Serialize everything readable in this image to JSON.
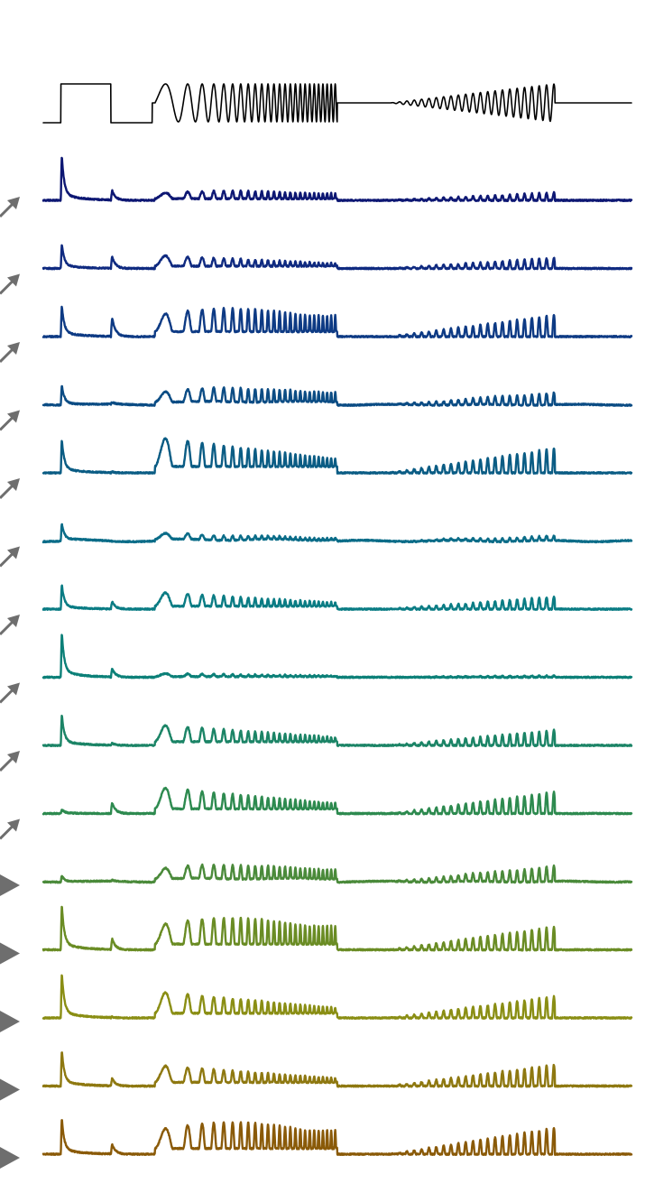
{
  "chart_data": {
    "type": "line",
    "title": "",
    "xlabel": "",
    "ylabel": "",
    "grid": false,
    "legend": "none",
    "stimulus": {
      "name": "",
      "color": "#000000",
      "segments": [
        {
          "kind": "step",
          "t_start": 0.03,
          "t_end": 0.115
        },
        {
          "kind": "chirp",
          "t_start": 0.19,
          "t_end": 0.5,
          "f_start": 1.0,
          "f_end": 15.0
        },
        {
          "kind": "amplitude_sweep",
          "t_start": 0.59,
          "t_end": 0.87,
          "f": 8.0
        }
      ]
    },
    "series": [
      {
        "color": "#0d1773",
        "transient": 1.0,
        "off_bump": 0.45,
        "chirp_amp": 0.25,
        "chirp_shape": "sustained",
        "sweep_amp": 0.25,
        "drift": 0.0
      },
      {
        "color": "#0f2a80",
        "transient": 0.55,
        "off_bump": 0.55,
        "chirp_amp": 0.35,
        "chirp_shape": "decay",
        "sweep_amp": 0.35,
        "drift": 0.0
      },
      {
        "color": "#0d3a84",
        "transient": 0.7,
        "off_bump": 0.85,
        "chirp_amp": 0.75,
        "chirp_shape": "sustained",
        "sweep_amp": 0.7,
        "drift": 0.0
      },
      {
        "color": "#0b4c84",
        "transient": 0.45,
        "off_bump": 0.1,
        "chirp_amp": 0.45,
        "chirp_shape": "sustained",
        "sweep_amp": 0.4,
        "drift": 0.1
      },
      {
        "color": "#0a5c84",
        "transient": 0.75,
        "off_bump": 0.05,
        "chirp_amp": 0.95,
        "chirp_shape": "decay",
        "sweep_amp": 0.8,
        "drift": 0.0
      },
      {
        "color": "#0a6c88",
        "transient": 0.4,
        "off_bump": 0.0,
        "chirp_amp": 0.2,
        "chirp_shape": "decay",
        "sweep_amp": 0.15,
        "drift": 0.15
      },
      {
        "color": "#0a7c84",
        "transient": 0.55,
        "off_bump": 0.35,
        "chirp_amp": 0.45,
        "chirp_shape": "decay",
        "sweep_amp": 0.4,
        "drift": 0.0
      },
      {
        "color": "#0c8078",
        "transient": 1.0,
        "off_bump": 0.4,
        "chirp_amp": 0.1,
        "chirp_shape": "decay",
        "sweep_amp": 0.05,
        "drift": 0.0
      },
      {
        "color": "#1b8466",
        "transient": 0.7,
        "off_bump": 0.1,
        "chirp_amp": 0.55,
        "chirp_shape": "decay",
        "sweep_amp": 0.5,
        "drift": 0.0
      },
      {
        "color": "#2d8a4f",
        "transient": 0.1,
        "off_bump": 0.5,
        "chirp_amp": 0.7,
        "chirp_shape": "decay",
        "sweep_amp": 0.7,
        "drift": 0.0
      },
      {
        "color": "#4a8a3a",
        "transient": 0.15,
        "off_bump": 0.05,
        "chirp_amp": 0.45,
        "chirp_shape": "sustained",
        "sweep_amp": 0.5,
        "drift": 0.1
      },
      {
        "color": "#6a8c24",
        "transient": 1.0,
        "off_bump": 0.5,
        "chirp_amp": 0.85,
        "chirp_shape": "sustained",
        "sweep_amp": 0.75,
        "drift": 0.0
      },
      {
        "color": "#8a8e14",
        "transient": 1.0,
        "off_bump": 0.05,
        "chirp_amp": 0.7,
        "chirp_shape": "decay",
        "sweep_amp": 0.7,
        "drift": 0.0
      },
      {
        "color": "#8e7810",
        "transient": 0.8,
        "off_bump": 0.35,
        "chirp_amp": 0.55,
        "chirp_shape": "decay",
        "sweep_amp": 0.7,
        "drift": 0.0
      },
      {
        "color": "#8a5a08",
        "transient": 0.8,
        "off_bump": 0.45,
        "chirp_amp": 0.85,
        "chirp_shape": "sustained",
        "sweep_amp": 0.85,
        "drift": 0.0
      }
    ],
    "markers": {
      "color": "#6e6e6e",
      "items": [
        {
          "row": 0,
          "kind": "arrow-ne"
        },
        {
          "row": 2,
          "kind": "arrow-ne"
        },
        {
          "row": 3,
          "kind": "arrow-ne"
        },
        {
          "row": 4,
          "kind": "arrow-ne"
        },
        {
          "row": 5,
          "kind": "arrow-ne"
        },
        {
          "row": 6,
          "kind": "arrow-ne"
        },
        {
          "row": 7,
          "kind": "arrow-ne"
        },
        {
          "row": 8,
          "kind": "arrow-ne"
        },
        {
          "row": 9,
          "kind": "arrow-ne"
        },
        {
          "row": 10,
          "kind": "arrow-ne"
        },
        {
          "row": 11,
          "kind": "triangle-right"
        },
        {
          "row": 12,
          "kind": "triangle-right"
        },
        {
          "row": 13,
          "kind": "triangle-right"
        },
        {
          "row": 14,
          "kind": "triangle-right"
        },
        {
          "row": 15,
          "kind": "triangle-right"
        }
      ]
    }
  }
}
